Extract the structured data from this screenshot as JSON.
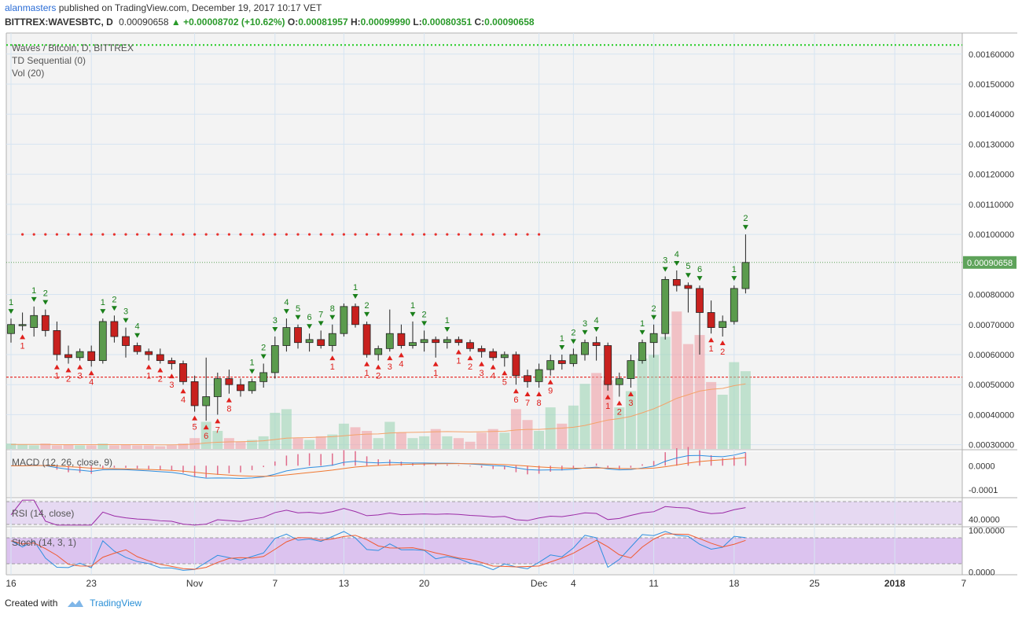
{
  "header": {
    "author": "alanmasters",
    "published": "published on TradingView.com, December 19, 2017 10:17 VET",
    "symbol": "BITTREX:WAVESBTC, D",
    "last": "0.00090658",
    "change": "+0.00008702 (+10.62%)",
    "o_label": "O:",
    "o": "0.00081957",
    "h_label": "H:",
    "h": "0.00099990",
    "l_label": "L:",
    "l": "0.00080351",
    "c_label": "C:",
    "c": "0.00090658"
  },
  "legend": {
    "main": "Waves / Bitcoin, D, BITTREX",
    "td": "TD Sequential (0)",
    "vol": "Vol (20)",
    "macd": "MACD (12, 26, close, 9)",
    "rsi": "RSI (14, close)",
    "stoch": "Stoch (14, 3, 1)"
  },
  "footer": {
    "created": "Created with",
    "brand": "TradingView"
  },
  "colors": {
    "up": "#5b9b4d",
    "down": "#c8211e",
    "grid": "#d6e4f2",
    "green_line": "#22cc22",
    "red_line": "#e8322e",
    "price_tag": "#5ea35a"
  },
  "chart_data": {
    "type": "candlestick",
    "title": "Waves / Bitcoin, D, BITTREX",
    "y_ticks": [
      "0.00160000",
      "0.00150000",
      "0.00140000",
      "0.00130000",
      "0.00120000",
      "0.00110000",
      "0.00100000",
      "0.00090658",
      "0.00080000",
      "0.00070000",
      "0.00060000",
      "0.00050000",
      "0.00040000",
      "0.00030000"
    ],
    "ylim": [
      0.000286,
      0.00167
    ],
    "x_ticks": [
      {
        "label": "16",
        "i": 0
      },
      {
        "label": "23",
        "i": 7
      },
      {
        "label": "Nov",
        "i": 16
      },
      {
        "label": "7",
        "i": 23
      },
      {
        "label": "13",
        "i": 29
      },
      {
        "label": "20",
        "i": 36
      },
      {
        "label": "Dec",
        "i": 46
      },
      {
        "label": "4",
        "i": 49
      },
      {
        "label": "11",
        "i": 56
      },
      {
        "label": "18",
        "i": 63
      },
      {
        "label": "25",
        "i": 70
      },
      {
        "label": "2018",
        "i": 77
      },
      {
        "label": "7",
        "i": 83
      }
    ],
    "ohlc": [
      [
        0.00067,
        0.00072,
        0.00064,
        0.0007
      ],
      [
        0.0007,
        0.00074,
        0.00068,
        0.0007
      ],
      [
        0.00069,
        0.00076,
        0.00066,
        0.00073
      ],
      [
        0.00073,
        0.00075,
        0.00066,
        0.00068
      ],
      [
        0.00068,
        0.00071,
        0.00058,
        0.0006
      ],
      [
        0.0006,
        0.00063,
        0.00057,
        0.00059
      ],
      [
        0.00059,
        0.00062,
        0.00058,
        0.00061
      ],
      [
        0.00061,
        0.00063,
        0.00056,
        0.00058
      ],
      [
        0.00058,
        0.00072,
        0.00057,
        0.00071
      ],
      [
        0.00071,
        0.00073,
        0.00064,
        0.00066
      ],
      [
        0.00066,
        0.00069,
        0.00059,
        0.00063
      ],
      [
        0.00063,
        0.00064,
        0.0006,
        0.00061
      ],
      [
        0.00061,
        0.00062,
        0.00058,
        0.0006
      ],
      [
        0.0006,
        0.00062,
        0.00057,
        0.00058
      ],
      [
        0.00058,
        0.00059,
        0.00055,
        0.00057
      ],
      [
        0.00057,
        0.00058,
        0.0005,
        0.00051
      ],
      [
        0.00051,
        0.00053,
        0.00041,
        0.00043
      ],
      [
        0.00043,
        0.00059,
        0.00038,
        0.00046
      ],
      [
        0.00046,
        0.00054,
        0.0004,
        0.00052
      ],
      [
        0.00052,
        0.00055,
        0.00047,
        0.0005
      ],
      [
        0.0005,
        0.00052,
        0.00046,
        0.00048
      ],
      [
        0.00048,
        0.00052,
        0.00047,
        0.00051
      ],
      [
        0.00051,
        0.00057,
        0.00049,
        0.00054
      ],
      [
        0.00054,
        0.00066,
        0.00052,
        0.00063
      ],
      [
        0.00063,
        0.00072,
        0.00061,
        0.00069
      ],
      [
        0.00069,
        0.0007,
        0.00062,
        0.00064
      ],
      [
        0.00064,
        0.00067,
        0.00061,
        0.00065
      ],
      [
        0.00065,
        0.00068,
        0.00062,
        0.00063
      ],
      [
        0.00063,
        0.0007,
        0.00061,
        0.00067
      ],
      [
        0.00067,
        0.00077,
        0.00066,
        0.00076
      ],
      [
        0.00076,
        0.00077,
        0.00069,
        0.0007
      ],
      [
        0.0007,
        0.00071,
        0.00059,
        0.0006
      ],
      [
        0.0006,
        0.00063,
        0.00058,
        0.00062
      ],
      [
        0.00062,
        0.00075,
        0.00061,
        0.00067
      ],
      [
        0.00067,
        0.0007,
        0.00062,
        0.00063
      ],
      [
        0.00063,
        0.00071,
        0.00062,
        0.00064
      ],
      [
        0.00064,
        0.00068,
        0.00061,
        0.00065
      ],
      [
        0.00065,
        0.00066,
        0.00059,
        0.00064
      ],
      [
        0.00064,
        0.00066,
        0.00062,
        0.00065
      ],
      [
        0.00065,
        0.00066,
        0.00063,
        0.00064
      ],
      [
        0.00064,
        0.00065,
        0.00061,
        0.00062
      ],
      [
        0.00062,
        0.00063,
        0.00059,
        0.00061
      ],
      [
        0.00061,
        0.00062,
        0.00058,
        0.00059
      ],
      [
        0.00059,
        0.00061,
        0.00056,
        0.0006
      ],
      [
        0.0006,
        0.00061,
        0.0005,
        0.00053
      ],
      [
        0.00053,
        0.00055,
        0.00049,
        0.00051
      ],
      [
        0.00051,
        0.00057,
        0.00049,
        0.00055
      ],
      [
        0.00055,
        0.0006,
        0.00053,
        0.00058
      ],
      [
        0.00058,
        0.0006,
        0.00055,
        0.00057
      ],
      [
        0.00057,
        0.00062,
        0.00056,
        0.0006
      ],
      [
        0.0006,
        0.00065,
        0.00058,
        0.00064
      ],
      [
        0.00064,
        0.00066,
        0.00058,
        0.00063
      ],
      [
        0.00063,
        0.00064,
        0.00048,
        0.0005
      ],
      [
        0.0005,
        0.00054,
        0.00046,
        0.00052
      ],
      [
        0.00052,
        0.0006,
        0.00049,
        0.00058
      ],
      [
        0.00058,
        0.00065,
        0.00057,
        0.00064
      ],
      [
        0.00064,
        0.0007,
        0.00059,
        0.00067
      ],
      [
        0.00067,
        0.00086,
        0.00065,
        0.00085
      ],
      [
        0.00085,
        0.00088,
        0.00081,
        0.00083
      ],
      [
        0.00083,
        0.00084,
        0.00074,
        0.00082
      ],
      [
        0.00082,
        0.00083,
        0.0006,
        0.00074
      ],
      [
        0.00074,
        0.00078,
        0.00067,
        0.00069
      ],
      [
        0.00069,
        0.00073,
        0.00066,
        0.00071
      ],
      [
        0.00071,
        0.00083,
        0.0007,
        0.00082
      ],
      [
        0.00081957,
        0.0009999,
        0.00080351,
        0.00090658
      ]
    ],
    "volume": [
      0.03,
      0.025,
      0.02,
      0.03,
      0.02,
      0.025,
      0.02,
      0.02,
      0.03,
      0.02,
      0.025,
      0.02,
      0.02,
      0.015,
      0.02,
      0.03,
      0.06,
      0.15,
      0.1,
      0.06,
      0.04,
      0.05,
      0.07,
      0.2,
      0.22,
      0.06,
      0.05,
      0.07,
      0.08,
      0.14,
      0.12,
      0.1,
      0.06,
      0.15,
      0.09,
      0.06,
      0.07,
      0.11,
      0.07,
      0.06,
      0.04,
      0.09,
      0.11,
      0.09,
      0.22,
      0.16,
      0.1,
      0.23,
      0.14,
      0.24,
      0.36,
      0.42,
      0.38,
      0.23,
      0.32,
      0.5,
      0.52,
      0.62,
      0.76,
      0.58,
      0.63,
      0.37,
      0.3,
      0.48,
      0.43
    ],
    "vol_ma": [
      0.025,
      0.025,
      0.025,
      0.025,
      0.024,
      0.024,
      0.024,
      0.024,
      0.024,
      0.024,
      0.024,
      0.024,
      0.024,
      0.023,
      0.023,
      0.024,
      0.027,
      0.033,
      0.037,
      0.039,
      0.04,
      0.042,
      0.045,
      0.052,
      0.06,
      0.062,
      0.063,
      0.065,
      0.068,
      0.073,
      0.078,
      0.082,
      0.083,
      0.088,
      0.091,
      0.092,
      0.093,
      0.095,
      0.096,
      0.095,
      0.094,
      0.095,
      0.097,
      0.098,
      0.105,
      0.108,
      0.108,
      0.112,
      0.115,
      0.12,
      0.13,
      0.145,
      0.16,
      0.168,
      0.18,
      0.2,
      0.222,
      0.25,
      0.28,
      0.3,
      0.32,
      0.33,
      0.335,
      0.35,
      0.36
    ],
    "td_up": [
      [
        0,
        "1"
      ],
      [
        2,
        "1"
      ],
      [
        3,
        "2"
      ],
      [
        8,
        "1"
      ],
      [
        9,
        "2"
      ],
      [
        10,
        "3"
      ],
      [
        11,
        "4"
      ],
      [
        21,
        "1"
      ],
      [
        22,
        "2"
      ],
      [
        23,
        "3"
      ],
      [
        24,
        "4"
      ],
      [
        25,
        "5"
      ],
      [
        26,
        "6"
      ],
      [
        27,
        "7"
      ],
      [
        28,
        "8"
      ],
      [
        30,
        "1"
      ],
      [
        31,
        "2"
      ],
      [
        35,
        "1"
      ],
      [
        36,
        "2"
      ],
      [
        38,
        "1"
      ],
      [
        48,
        "1"
      ],
      [
        49,
        "2"
      ],
      [
        50,
        "3"
      ],
      [
        51,
        "4"
      ],
      [
        55,
        "1"
      ],
      [
        56,
        "2"
      ],
      [
        57,
        "3"
      ],
      [
        58,
        "4"
      ],
      [
        59,
        "5"
      ],
      [
        60,
        "6"
      ],
      [
        63,
        "1"
      ],
      [
        64,
        "2"
      ]
    ],
    "td_down": [
      [
        1,
        "1"
      ],
      [
        4,
        "1"
      ],
      [
        5,
        "2"
      ],
      [
        6,
        "3"
      ],
      [
        7,
        "4"
      ],
      [
        12,
        "1"
      ],
      [
        13,
        "2"
      ],
      [
        14,
        "3"
      ],
      [
        15,
        "4"
      ],
      [
        16,
        "5"
      ],
      [
        17,
        "6"
      ],
      [
        18,
        "7"
      ],
      [
        19,
        "8"
      ],
      [
        28,
        "1"
      ],
      [
        31,
        "1"
      ],
      [
        32,
        "2"
      ],
      [
        33,
        "3"
      ],
      [
        34,
        "4"
      ],
      [
        37,
        "1"
      ],
      [
        39,
        "1"
      ],
      [
        40,
        "2"
      ],
      [
        41,
        "3"
      ],
      [
        42,
        "4"
      ],
      [
        43,
        "5"
      ],
      [
        44,
        "6"
      ],
      [
        45,
        "7"
      ],
      [
        46,
        "8"
      ],
      [
        47,
        "9"
      ],
      [
        52,
        "1"
      ],
      [
        53,
        "2"
      ],
      [
        54,
        "3"
      ],
      [
        61,
        "1"
      ],
      [
        62,
        "2"
      ]
    ],
    "green_level": 0.00163,
    "red_level_high": 0.001,
    "red_level_low": 0.000525,
    "macd": {
      "y_ticks": [
        "0.0000",
        "-0.0001"
      ],
      "ylim": [
        -0.00013,
        6e-05
      ]
    },
    "rsi": {
      "y_ticks": [
        "40.0000"
      ],
      "ylim": [
        25,
        85
      ]
    },
    "stoch": {
      "y_ticks": [
        "100.0000",
        "0.0000"
      ],
      "ylim": [
        -5,
        105
      ]
    }
  }
}
